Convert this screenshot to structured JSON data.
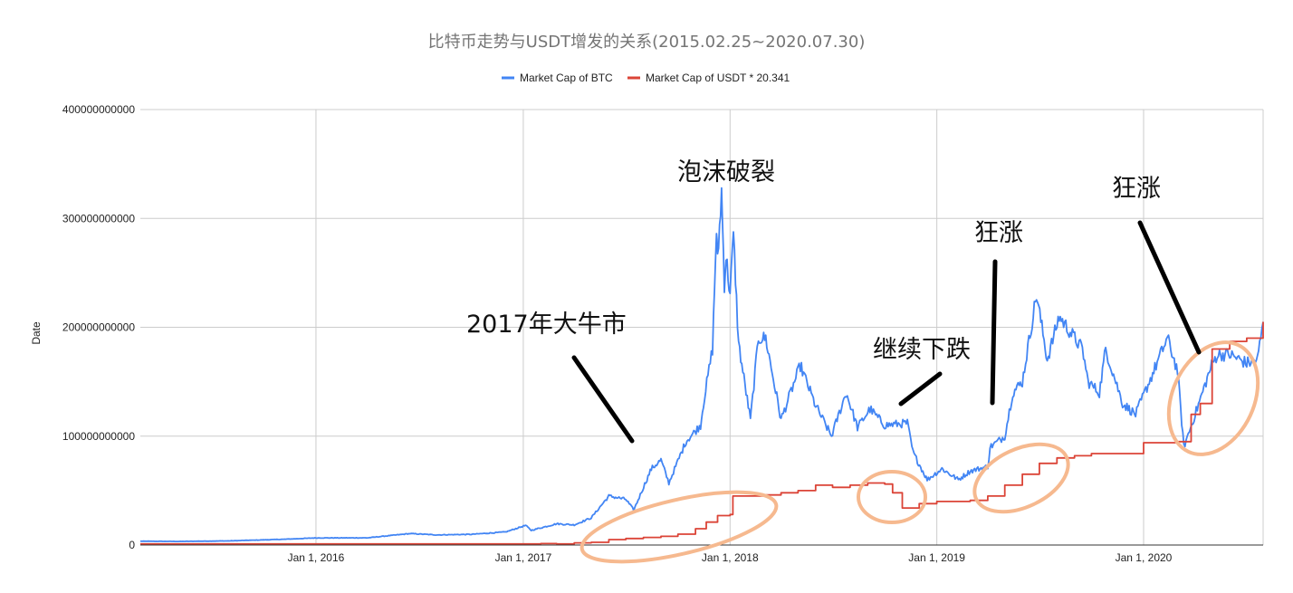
{
  "chart_data": {
    "type": "line",
    "title": "比特币走势与USDT增发的关系(2015.02.25~2020.07.30)",
    "xlabel": "",
    "ylabel": "Date",
    "xlim": [
      "2015-02-25",
      "2020-07-30"
    ],
    "ylim": [
      0,
      400000000000
    ],
    "grid": true,
    "legend_position": "top",
    "x_ticks": [
      {
        "date": "2016-01-01",
        "label": "Jan 1, 2016"
      },
      {
        "date": "2017-01-01",
        "label": "Jan 1, 2017"
      },
      {
        "date": "2018-01-01",
        "label": "Jan 1, 2018"
      },
      {
        "date": "2019-01-01",
        "label": "Jan 1, 2019"
      },
      {
        "date": "2020-01-01",
        "label": "Jan 1, 2020"
      }
    ],
    "y_ticks": [
      {
        "value": 0,
        "label": "0"
      },
      {
        "value": 100000000000,
        "label": "100000000000"
      },
      {
        "value": 200000000000,
        "label": "200000000000"
      },
      {
        "value": 300000000000,
        "label": "300000000000"
      },
      {
        "value": 400000000000,
        "label": "400000000000"
      }
    ],
    "series": [
      {
        "name": "Market Cap of BTC",
        "color": "#4285f4",
        "points": [
          [
            "2015-02-25",
            3500000000
          ],
          [
            "2015-05-01",
            3300000000
          ],
          [
            "2015-08-01",
            3800000000
          ],
          [
            "2015-11-01",
            5200000000
          ],
          [
            "2016-01-01",
            6500000000
          ],
          [
            "2016-04-01",
            6600000000
          ],
          [
            "2016-06-15",
            10500000000
          ],
          [
            "2016-08-01",
            9300000000
          ],
          [
            "2016-10-01",
            9800000000
          ],
          [
            "2016-12-01",
            12000000000
          ],
          [
            "2017-01-05",
            18000000000
          ],
          [
            "2017-01-15",
            13500000000
          ],
          [
            "2017-03-01",
            19500000000
          ],
          [
            "2017-04-01",
            18500000000
          ],
          [
            "2017-05-01",
            25000000000
          ],
          [
            "2017-06-01",
            45000000000
          ],
          [
            "2017-07-01",
            42000000000
          ],
          [
            "2017-07-15",
            32000000000
          ],
          [
            "2017-08-15",
            70000000000
          ],
          [
            "2017-09-01",
            78000000000
          ],
          [
            "2017-09-15",
            57000000000
          ],
          [
            "2017-10-15",
            95000000000
          ],
          [
            "2017-11-10",
            110000000000
          ],
          [
            "2017-11-15",
            130000000000
          ],
          [
            "2017-12-01",
            180000000000
          ],
          [
            "2017-12-08",
            290000000000
          ],
          [
            "2017-12-10",
            260000000000
          ],
          [
            "2017-12-17",
            325000000000
          ],
          [
            "2017-12-22",
            240000000000
          ],
          [
            "2017-12-25",
            265000000000
          ],
          [
            "2018-01-01",
            230000000000
          ],
          [
            "2018-01-07",
            285000000000
          ],
          [
            "2018-01-16",
            185000000000
          ],
          [
            "2018-02-06",
            115000000000
          ],
          [
            "2018-02-20",
            190000000000
          ],
          [
            "2018-03-05",
            190000000000
          ],
          [
            "2018-04-01",
            115000000000
          ],
          [
            "2018-05-05",
            165000000000
          ],
          [
            "2018-06-01",
            128000000000
          ],
          [
            "2018-06-29",
            100000000000
          ],
          [
            "2018-07-25",
            140000000000
          ],
          [
            "2018-08-14",
            108000000000
          ],
          [
            "2018-09-05",
            125000000000
          ],
          [
            "2018-10-01",
            110000000000
          ],
          [
            "2018-11-10",
            112000000000
          ],
          [
            "2018-11-20",
            85000000000
          ],
          [
            "2018-12-15",
            60000000000
          ],
          [
            "2019-01-10",
            70000000000
          ],
          [
            "2019-02-08",
            60000000000
          ],
          [
            "2019-03-01",
            68000000000
          ],
          [
            "2019-04-01",
            72000000000
          ],
          [
            "2019-04-05",
            90000000000
          ],
          [
            "2019-05-01",
            100000000000
          ],
          [
            "2019-05-15",
            140000000000
          ],
          [
            "2019-06-01",
            150000000000
          ],
          [
            "2019-06-26",
            230000000000
          ],
          [
            "2019-07-15",
            170000000000
          ],
          [
            "2019-08-05",
            210000000000
          ],
          [
            "2019-09-15",
            180000000000
          ],
          [
            "2019-09-25",
            150000000000
          ],
          [
            "2019-10-15",
            140000000000
          ],
          [
            "2019-10-26",
            180000000000
          ],
          [
            "2019-11-25",
            130000000000
          ],
          [
            "2019-12-18",
            120000000000
          ],
          [
            "2020-01-15",
            155000000000
          ],
          [
            "2020-02-12",
            190000000000
          ],
          [
            "2020-03-01",
            160000000000
          ],
          [
            "2020-03-12",
            90000000000
          ],
          [
            "2020-04-01",
            120000000000
          ],
          [
            "2020-04-30",
            165000000000
          ],
          [
            "2020-05-10",
            175000000000
          ],
          [
            "2020-06-01",
            175000000000
          ],
          [
            "2020-07-01",
            167000000000
          ],
          [
            "2020-07-20",
            170000000000
          ],
          [
            "2020-07-30",
            205000000000
          ]
        ]
      },
      {
        "name": "Market Cap of USDT * 20.341",
        "color": "#db4437",
        "points": [
          [
            "2015-02-25",
            1000000000
          ],
          [
            "2016-12-31",
            1000000000
          ],
          [
            "2017-02-01",
            1300000000
          ],
          [
            "2017-03-01",
            1000000000
          ],
          [
            "2017-04-01",
            2000000000
          ],
          [
            "2017-05-01",
            2500000000
          ],
          [
            "2017-06-01",
            5000000000
          ],
          [
            "2017-07-01",
            6000000000
          ],
          [
            "2017-08-01",
            7000000000
          ],
          [
            "2017-09-01",
            8000000000
          ],
          [
            "2017-10-01",
            10000000000
          ],
          [
            "2017-11-01",
            15000000000
          ],
          [
            "2017-11-20",
            21000000000
          ],
          [
            "2017-12-10",
            27000000000
          ],
          [
            "2018-01-01",
            28000000000
          ],
          [
            "2018-01-06",
            45000000000
          ],
          [
            "2018-03-01",
            46000000000
          ],
          [
            "2018-04-01",
            48000000000
          ],
          [
            "2018-05-01",
            50000000000
          ],
          [
            "2018-06-01",
            55000000000
          ],
          [
            "2018-07-01",
            53000000000
          ],
          [
            "2018-08-01",
            55000000000
          ],
          [
            "2018-09-01",
            57000000000
          ],
          [
            "2018-10-01",
            56000000000
          ],
          [
            "2018-10-15",
            48000000000
          ],
          [
            "2018-11-01",
            34000000000
          ],
          [
            "2018-12-01",
            38000000000
          ],
          [
            "2019-01-01",
            40000000000
          ],
          [
            "2019-03-01",
            41000000000
          ],
          [
            "2019-04-01",
            45000000000
          ],
          [
            "2019-05-01",
            55000000000
          ],
          [
            "2019-06-01",
            65000000000
          ],
          [
            "2019-07-01",
            75000000000
          ],
          [
            "2019-08-01",
            80000000000
          ],
          [
            "2019-09-01",
            82000000000
          ],
          [
            "2019-10-01",
            84000000000
          ],
          [
            "2019-12-31",
            84000000000
          ],
          [
            "2020-01-01",
            94000000000
          ],
          [
            "2020-03-01",
            95000000000
          ],
          [
            "2020-03-12",
            95000000000
          ],
          [
            "2020-03-25",
            120000000000
          ],
          [
            "2020-04-10",
            130000000000
          ],
          [
            "2020-05-01",
            180000000000
          ],
          [
            "2020-06-01",
            187000000000
          ],
          [
            "2020-07-01",
            190000000000
          ],
          [
            "2020-07-30",
            205000000000
          ]
        ]
      }
    ],
    "annotations": [
      {
        "text": "2017年大牛市",
        "color": "#111111"
      },
      {
        "text": "泡沫破裂",
        "color": "#111111"
      },
      {
        "text": "继续下跌",
        "color": "#111111"
      },
      {
        "text": "狂涨",
        "color": "#111111"
      },
      {
        "text": "狂涨",
        "color": "#111111"
      }
    ],
    "highlight_color": "#f6b98f"
  }
}
